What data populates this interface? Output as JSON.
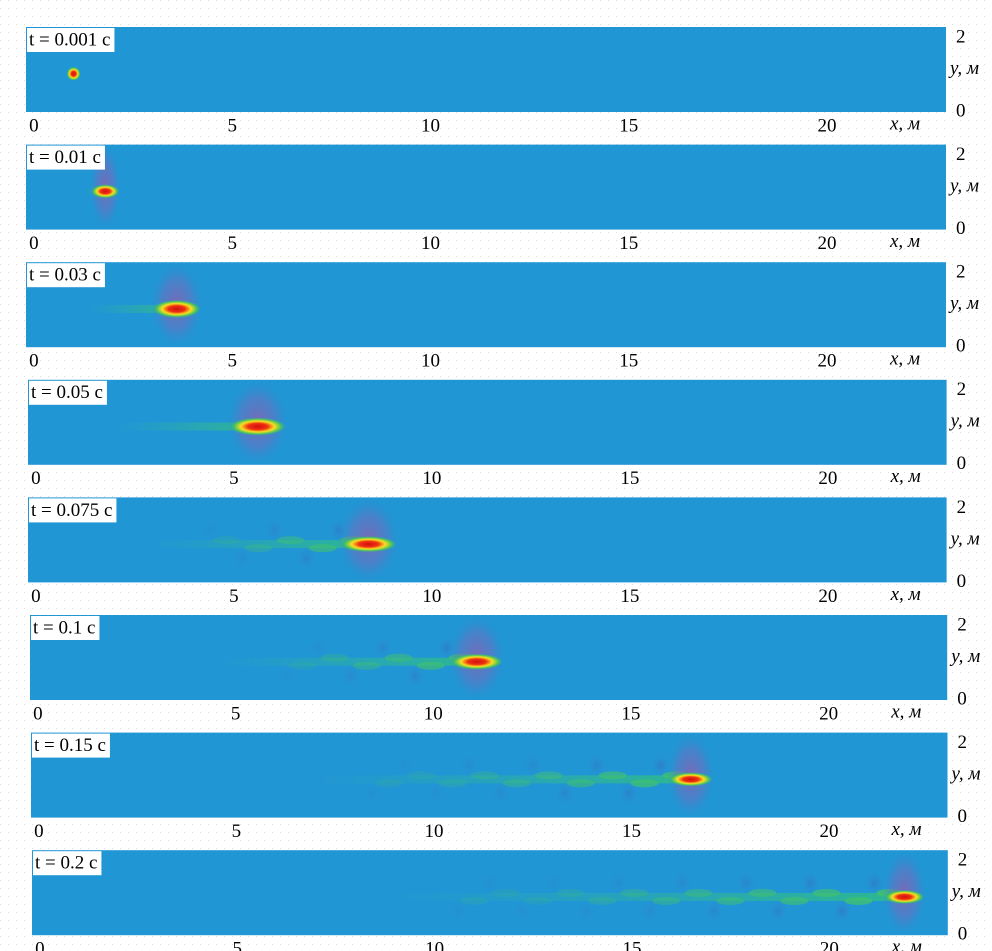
{
  "x_axis": {
    "label": "x, м",
    "ticks": [
      0,
      5,
      10,
      15,
      20
    ],
    "lim": [
      -0.2,
      23
    ]
  },
  "y_axis": {
    "label": "y, м",
    "ticks": [
      0,
      2
    ],
    "lim": [
      0,
      2.3
    ]
  },
  "panels": [
    {
      "label": "t = 0.001 с"
    },
    {
      "label": "t = 0.01 с"
    },
    {
      "label": "t = 0.03 с"
    },
    {
      "label": "t = 0.05 с"
    },
    {
      "label": "t = 0.075 с"
    },
    {
      "label": "t = 0.1 с"
    },
    {
      "label": "t = 0.15 с"
    },
    {
      "label": "t = 0.2 с"
    }
  ]
}
